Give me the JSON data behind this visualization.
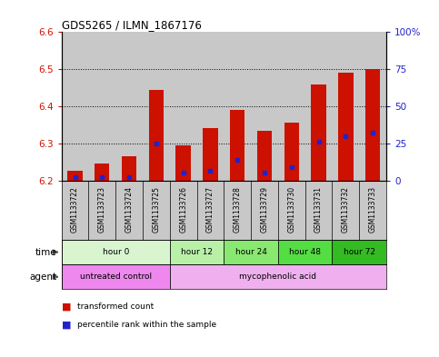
{
  "title": "GDS5265 / ILMN_1867176",
  "samples": [
    "GSM1133722",
    "GSM1133723",
    "GSM1133724",
    "GSM1133725",
    "GSM1133726",
    "GSM1133727",
    "GSM1133728",
    "GSM1133729",
    "GSM1133730",
    "GSM1133731",
    "GSM1133732",
    "GSM1133733"
  ],
  "bar_bottom": 6.2,
  "bar_tops": [
    6.225,
    6.245,
    6.265,
    6.445,
    6.295,
    6.34,
    6.39,
    6.335,
    6.355,
    6.46,
    6.49,
    6.5
  ],
  "percentile_values": [
    6.21,
    6.21,
    6.21,
    6.3,
    6.22,
    6.225,
    6.255,
    6.22,
    6.235,
    6.305,
    6.32,
    6.33
  ],
  "ylim": [
    6.2,
    6.6
  ],
  "right_ylim": [
    0,
    100
  ],
  "right_yticks": [
    0,
    25,
    50,
    75,
    100
  ],
  "right_yticklabels": [
    "0",
    "25",
    "50",
    "75",
    "100%"
  ],
  "left_yticks": [
    6.2,
    6.3,
    6.4,
    6.5,
    6.6
  ],
  "left_yticklabels": [
    "6.2",
    "6.3",
    "6.4",
    "6.5",
    "6.6"
  ],
  "time_groups": [
    {
      "label": "hour 0",
      "start": 0,
      "end": 4,
      "color": "#d8f5d0"
    },
    {
      "label": "hour 12",
      "start": 4,
      "end": 6,
      "color": "#b8f0a8"
    },
    {
      "label": "hour 24",
      "start": 6,
      "end": 8,
      "color": "#88e870"
    },
    {
      "label": "hour 48",
      "start": 8,
      "end": 10,
      "color": "#55dd44"
    },
    {
      "label": "hour 72",
      "start": 10,
      "end": 12,
      "color": "#33bb22"
    }
  ],
  "agent_groups": [
    {
      "label": "untreated control",
      "start": 0,
      "end": 4,
      "color": "#ee88ee"
    },
    {
      "label": "mycophenolic acid",
      "start": 4,
      "end": 12,
      "color": "#f0b0f0"
    }
  ],
  "bar_color": "#cc1100",
  "percentile_color": "#2222cc",
  "sample_bg_color": "#c8c8c8",
  "sample_label_area_color": "#c8c8c8",
  "left_tick_color": "#cc1100",
  "right_tick_color": "#2222cc",
  "grid_color": "#000000"
}
